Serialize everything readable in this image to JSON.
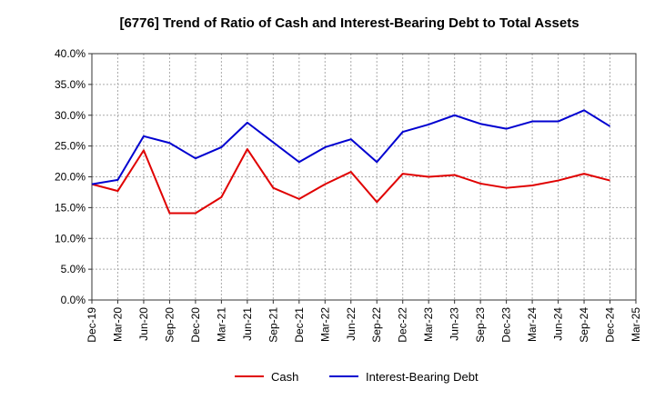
{
  "chart_data": {
    "type": "line",
    "title": "[6776]  Trend of Ratio of Cash and Interest-Bearing Debt to Total Assets",
    "xlabel": "",
    "ylabel": "",
    "categories": [
      "Dec-19",
      "Mar-20",
      "Jun-20",
      "Sep-20",
      "Dec-20",
      "Mar-21",
      "Jun-21",
      "Sep-21",
      "Dec-21",
      "Mar-22",
      "Jun-22",
      "Sep-22",
      "Dec-22",
      "Mar-23",
      "Jun-23",
      "Sep-23",
      "Dec-23",
      "Mar-24",
      "Jun-24",
      "Sep-24",
      "Dec-24",
      "Mar-25"
    ],
    "ylim": [
      0,
      40
    ],
    "yticks": [
      0,
      5,
      10,
      15,
      20,
      25,
      30,
      35,
      40
    ],
    "ytick_labels": [
      "0.0%",
      "5.0%",
      "10.0%",
      "15.0%",
      "20.0%",
      "25.0%",
      "30.0%",
      "35.0%",
      "40.0%"
    ],
    "grid": true,
    "legend_position": "bottom",
    "series": [
      {
        "name": "Cash",
        "color": "#e00000",
        "values": [
          18.8,
          17.7,
          24.3,
          14.1,
          14.1,
          16.7,
          24.5,
          18.2,
          16.4,
          18.8,
          20.8,
          15.9,
          20.5,
          20.0,
          20.3,
          18.9,
          18.2,
          18.6,
          19.4,
          20.5,
          19.4,
          null
        ]
      },
      {
        "name": "Interest-Bearing Debt",
        "color": "#0000d0",
        "values": [
          18.8,
          19.5,
          26.6,
          25.5,
          23.0,
          24.8,
          28.8,
          25.6,
          22.4,
          24.8,
          26.1,
          22.4,
          27.3,
          28.5,
          30.0,
          28.6,
          27.8,
          29.0,
          29.0,
          30.8,
          28.2,
          null
        ]
      }
    ]
  }
}
